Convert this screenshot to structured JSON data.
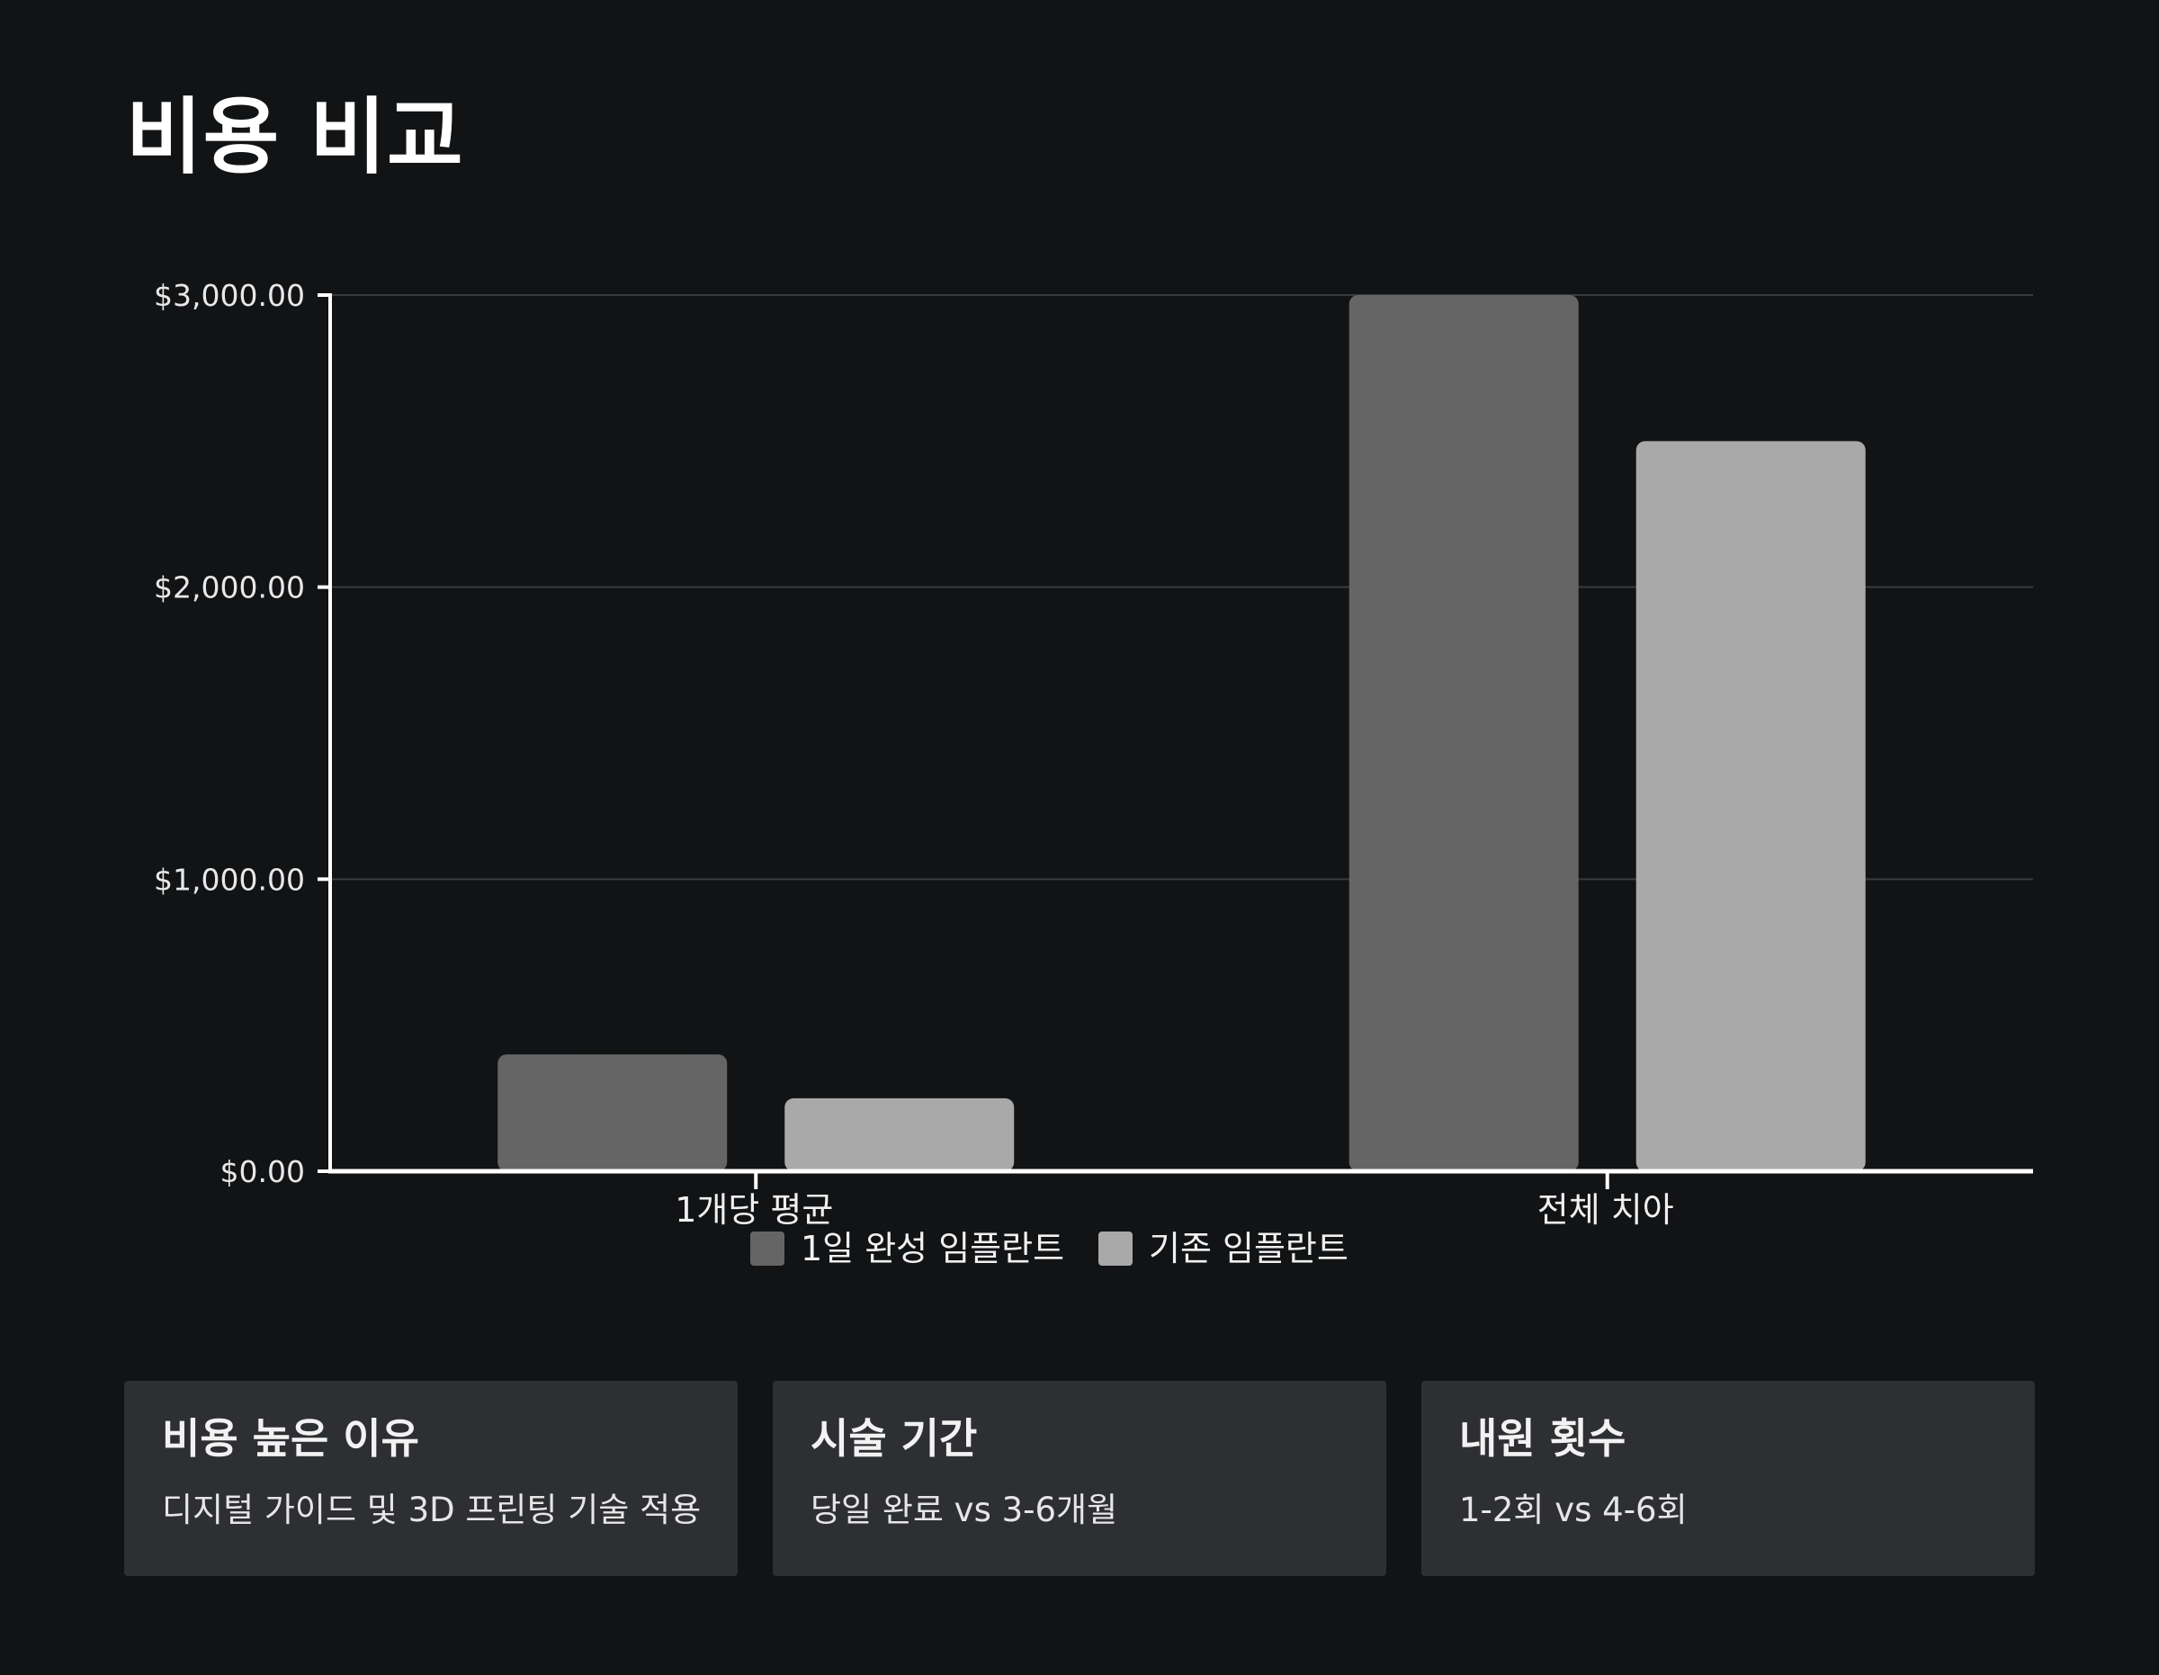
{
  "title": "비용 비교",
  "colors": {
    "background": "#121315",
    "series_1": "#656565",
    "series_2": "#a9a9a9",
    "card_bg": "#2e2f32",
    "grid": "#3a3b3d",
    "axis": "#ffffff"
  },
  "chart_data": {
    "type": "bar",
    "title": "",
    "xlabel": "",
    "ylabel": "",
    "categories": [
      "1개당 평균",
      "전체 치아"
    ],
    "series": [
      {
        "name": "1일 완성 임플란트",
        "values": [
          400,
          3000
        ]
      },
      {
        "name": "기존 임플란트",
        "values": [
          250,
          2500
        ]
      }
    ],
    "ylim": [
      0,
      3000
    ],
    "yticks": [
      "$0.00",
      "$1,000.00",
      "$2,000.00",
      "$3,000.00"
    ],
    "ytick_values": [
      0,
      1000,
      2000,
      3000
    ],
    "grid": true,
    "legend_position": "bottom"
  },
  "cards": [
    {
      "title": "비용 높은 이유",
      "text": "디지털 가이드 및 3D 프린팅 기술 적용"
    },
    {
      "title": "시술 기간",
      "text": "당일 완료 vs 3-6개월"
    },
    {
      "title": "내원 횟수",
      "text": "1-2회 vs 4-6회"
    }
  ]
}
